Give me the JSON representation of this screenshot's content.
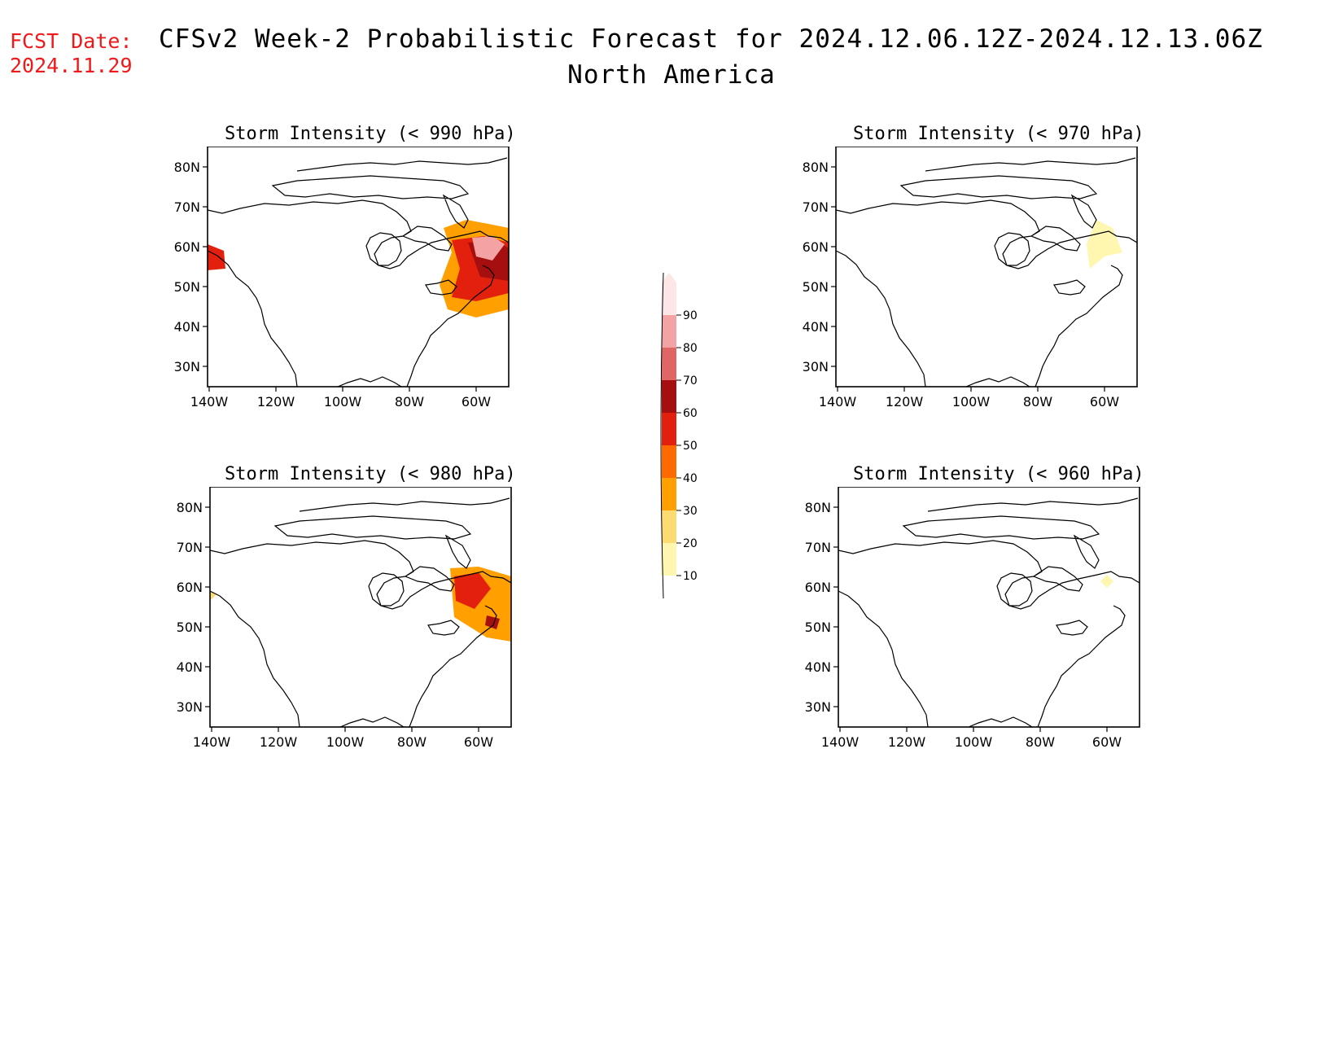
{
  "header": {
    "fcst_date": "FCST Date:\n2024.11.29",
    "title": "CFSv2 Week-2 Probabilistic Forecast for 2024.12.06.12Z-2024.12.13.06Z",
    "subtitle": "North America"
  },
  "panels": [
    {
      "title": "Storm Intensity (< 990 hPa)",
      "intensity": "high"
    },
    {
      "title": "Storm Intensity (< 970 hPa)",
      "intensity": "low"
    },
    {
      "title": "Storm Intensity (< 980 hPa)",
      "intensity": "medium"
    },
    {
      "title": "Storm Intensity (< 960 hPa)",
      "intensity": "minimal"
    }
  ],
  "axes": {
    "lat_labels": [
      "80N",
      "70N",
      "60N",
      "50N",
      "40N",
      "30N"
    ],
    "lon_labels": [
      "140W",
      "120W",
      "100W",
      "80W",
      "60W"
    ]
  },
  "colorbar": {
    "labels": [
      "90",
      "80",
      "70",
      "60",
      "50",
      "40",
      "30",
      "20",
      "10"
    ],
    "colors": [
      "#fde6e6",
      "#f3a3a3",
      "#e06666",
      "#a50f0f",
      "#e3200e",
      "#ff6a00",
      "#ff9f00",
      "#fcdc72",
      "#fff7b0"
    ]
  }
}
